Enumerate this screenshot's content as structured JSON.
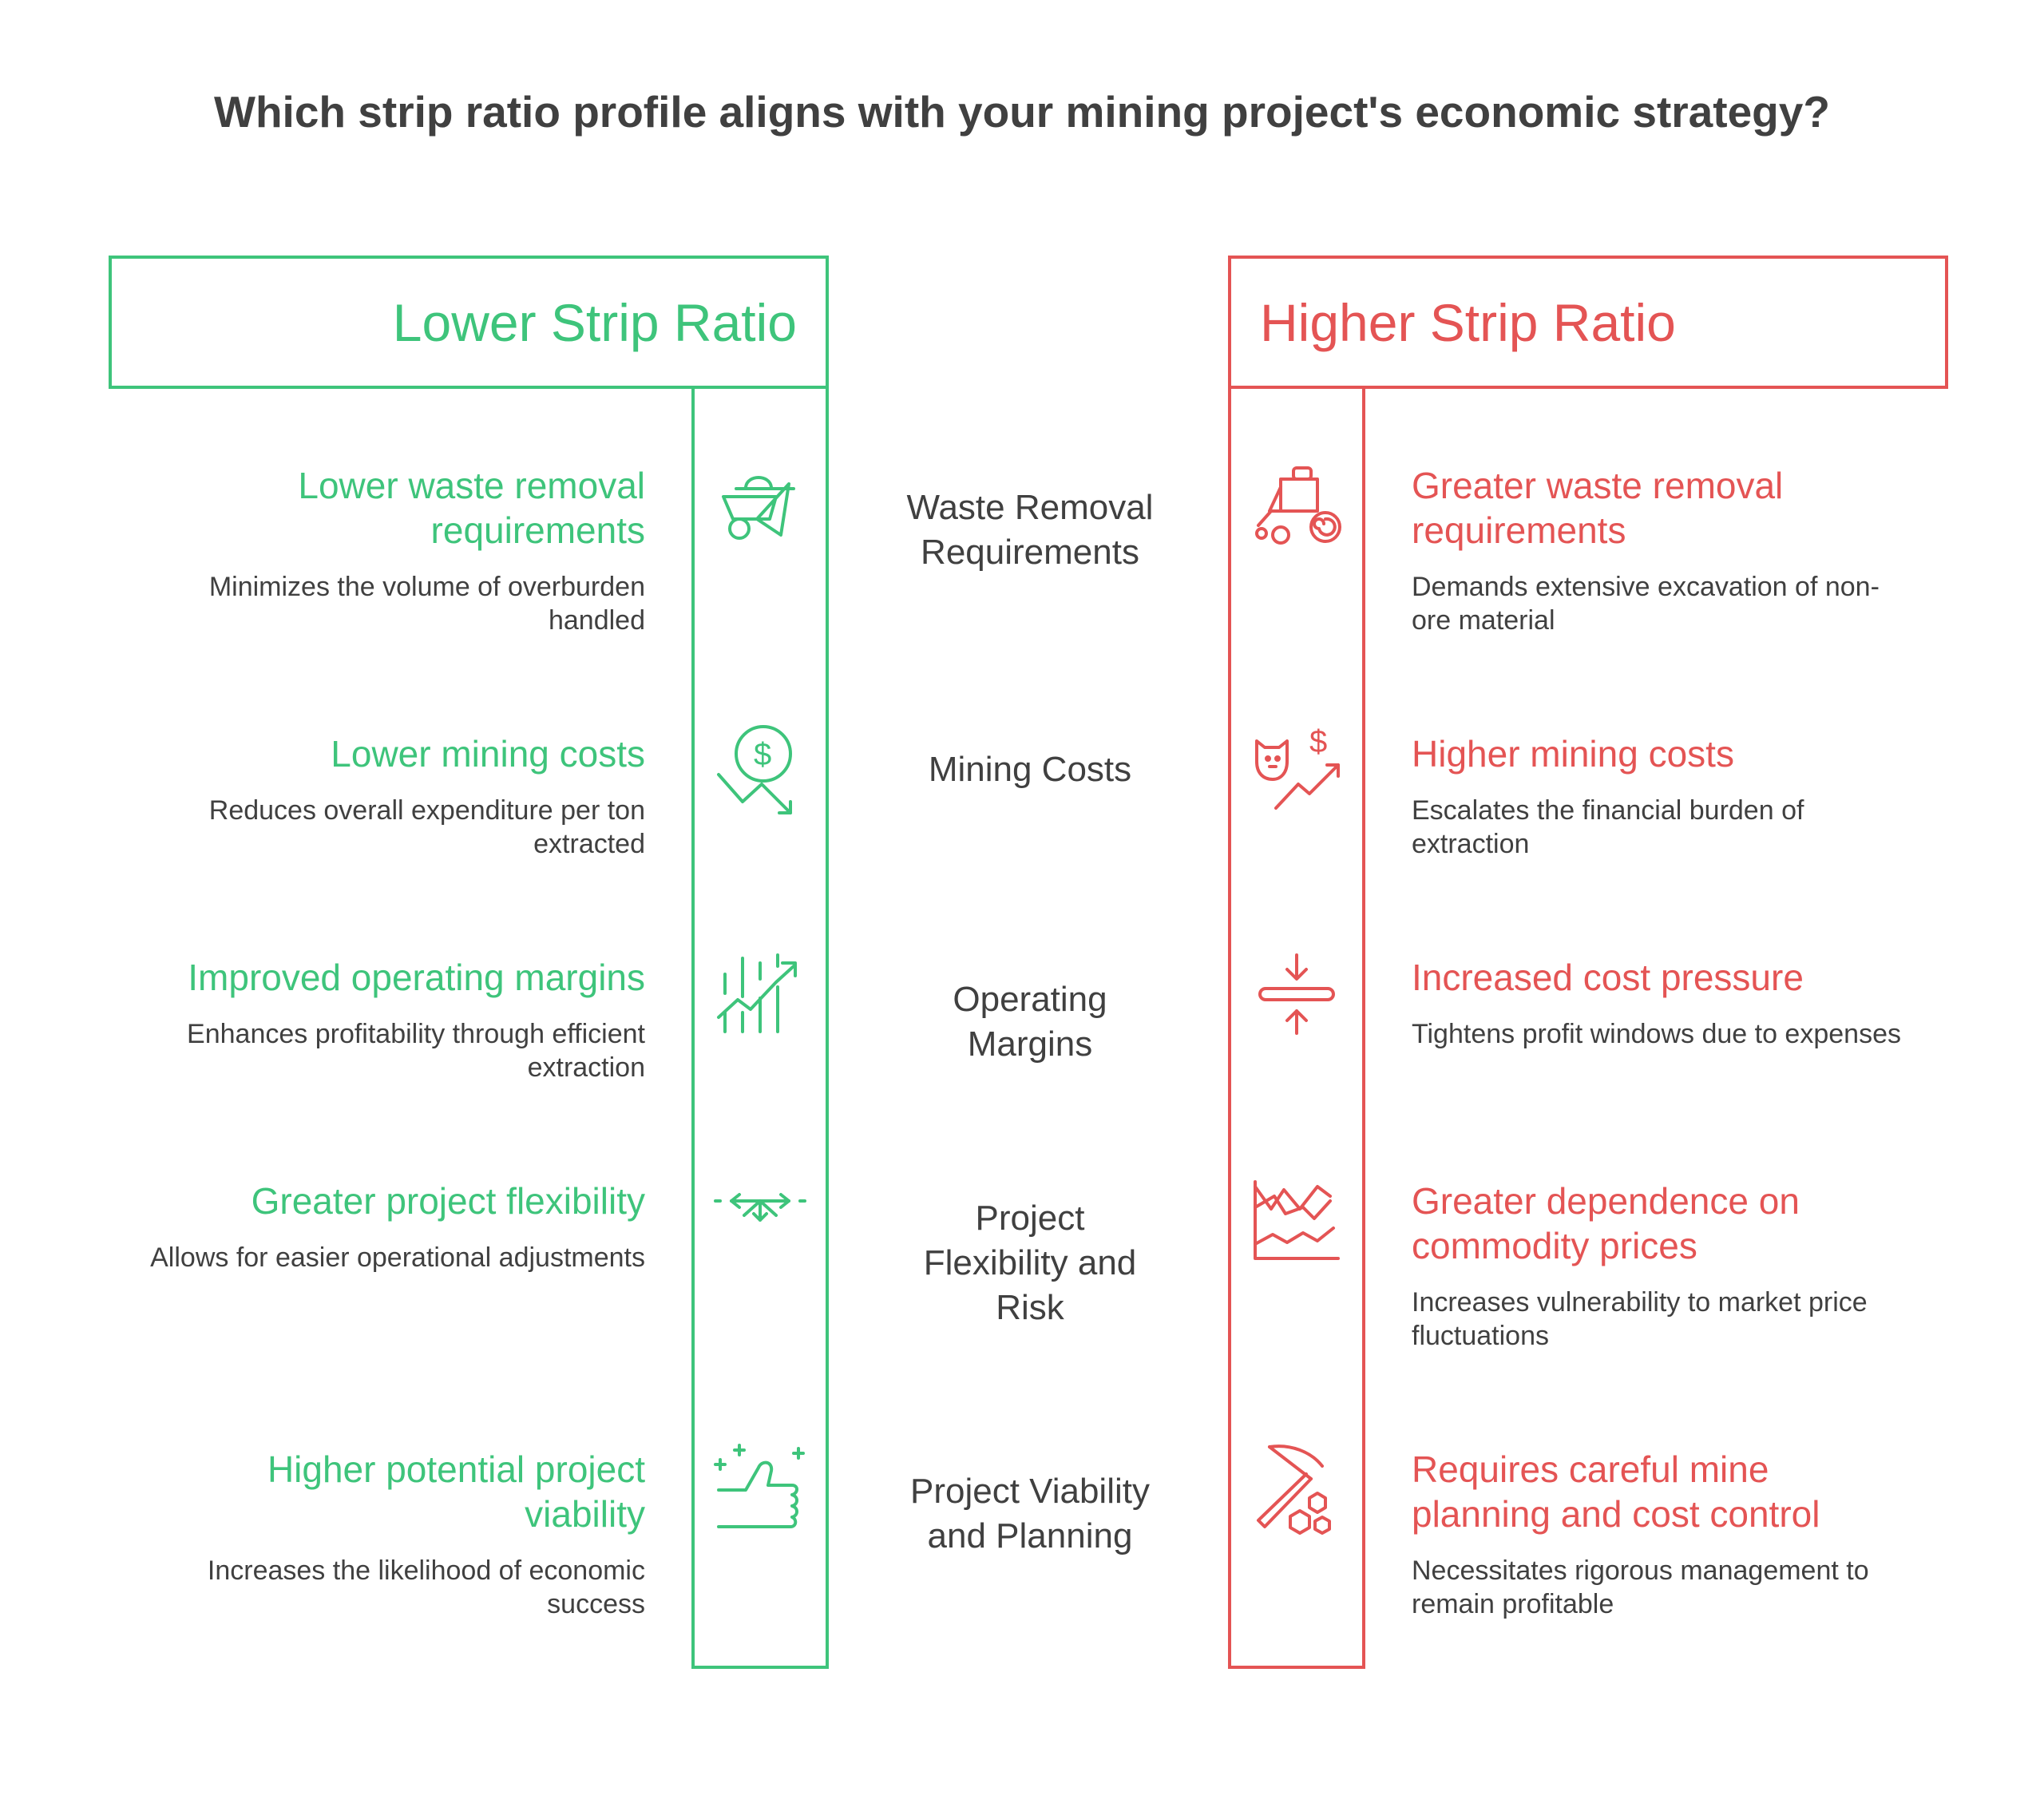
{
  "title": "Which strip ratio profile aligns with your mining project's economic strategy?",
  "left_header": "Lower Strip Ratio",
  "right_header": "Higher Strip Ratio",
  "colors": {
    "green": "#3ec47b",
    "red": "#e45454",
    "text": "#404040"
  },
  "rows": [
    {
      "center": [
        "Waste Removal",
        "Requirements"
      ],
      "left": {
        "heading": "Lower waste removal requirements",
        "description": "Minimizes the volume of overburden handled",
        "icon": "wheelbarrow-icon"
      },
      "right": {
        "heading": "Greater waste removal requirements",
        "description": "Demands extensive excavation of non-ore material",
        "icon": "tractor-icon"
      }
    },
    {
      "center": [
        "Mining Costs"
      ],
      "left": {
        "heading": "Lower mining costs",
        "description": "Reduces overall expenditure per ton extracted",
        "icon": "dollar-down-trend-icon"
      },
      "right": {
        "heading": "Higher mining costs",
        "description": "Escalates the financial burden of extraction",
        "icon": "piggy-bank-up-trend-icon"
      }
    },
    {
      "center": [
        "Operating",
        "Margins"
      ],
      "left": {
        "heading": "Improved operating margins",
        "description": "Enhances profitability through efficient extraction",
        "icon": "growth-chart-icon"
      },
      "right": {
        "heading": "Increased cost pressure",
        "description": "Tightens profit windows due to expenses",
        "icon": "compress-icon"
      }
    },
    {
      "center": [
        "Project",
        "Flexibility and",
        "Risk"
      ],
      "left": {
        "heading": "Greater project flexibility",
        "description": "Allows for easier operational adjustments",
        "icon": "flexible-arrows-icon"
      },
      "right": {
        "heading": "Greater dependence on commodity prices",
        "description": "Increases vulnerability to market price fluctuations",
        "icon": "volatile-chart-icon"
      }
    },
    {
      "center": [
        "Project Viability",
        "and Planning"
      ],
      "left": {
        "heading": "Higher potential project viability",
        "description": "Increases the likelihood of economic success",
        "icon": "thumbs-up-icon"
      },
      "right": {
        "heading": "Requires careful mine planning and cost control",
        "description": "Necessitates rigorous management to remain profitable",
        "icon": "pickaxe-icon"
      }
    }
  ]
}
